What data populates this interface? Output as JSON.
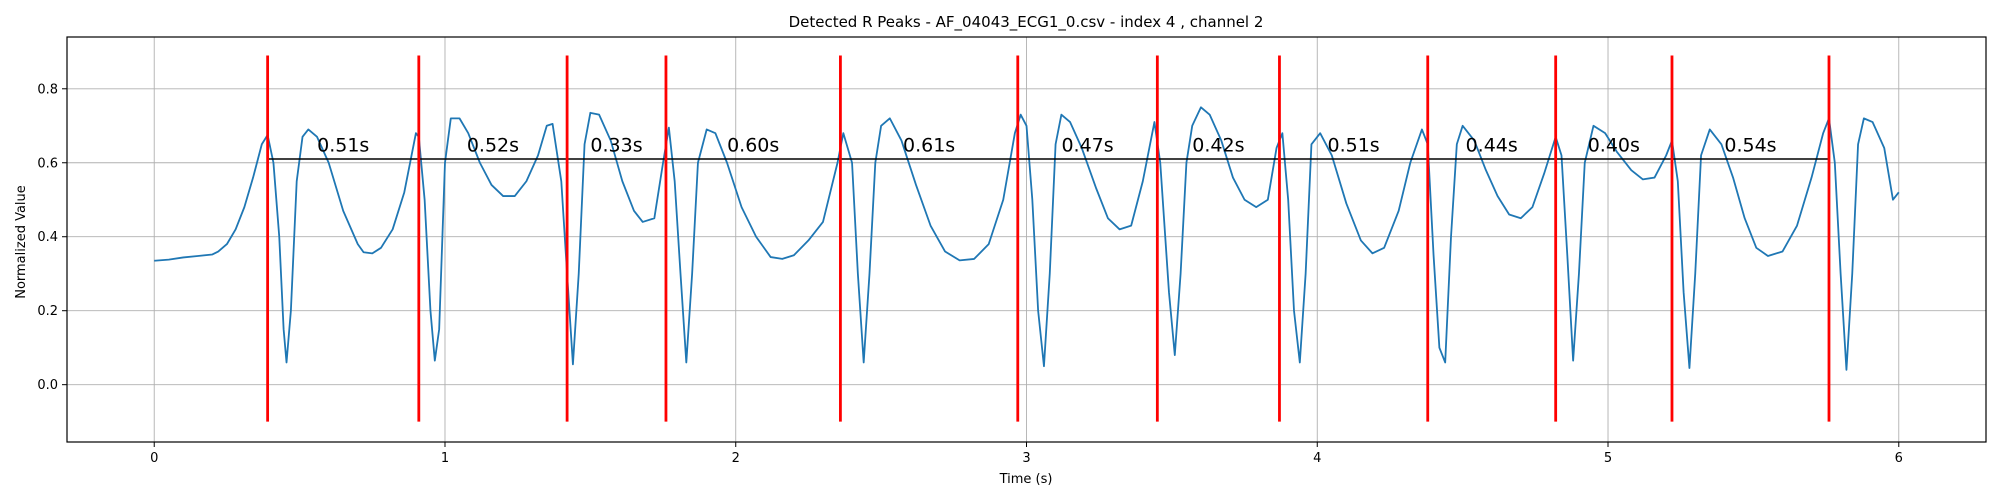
{
  "chart_data": {
    "type": "line",
    "title": "Detected R Peaks - AF_04043_ECG1_0.csv - index 4 , channel 2",
    "xlabel": "Time (s)",
    "ylabel": "Normalized Value",
    "xlim": [
      -0.3,
      6.3
    ],
    "ylim": [
      -0.155,
      0.94
    ],
    "xticks": [
      0,
      1,
      2,
      3,
      4,
      5,
      6
    ],
    "yticks": [
      0.0,
      0.2,
      0.4,
      0.6,
      0.8
    ],
    "grid": true,
    "series": [
      {
        "color": "#1f77b4",
        "points": [
          [
            0.0,
            0.335
          ],
          [
            0.05,
            0.338
          ],
          [
            0.1,
            0.344
          ],
          [
            0.15,
            0.348
          ],
          [
            0.2,
            0.352
          ],
          [
            0.22,
            0.36
          ],
          [
            0.25,
            0.38
          ],
          [
            0.28,
            0.42
          ],
          [
            0.31,
            0.48
          ],
          [
            0.34,
            0.56
          ],
          [
            0.37,
            0.65
          ],
          [
            0.39,
            0.675
          ],
          [
            0.41,
            0.6
          ],
          [
            0.43,
            0.4
          ],
          [
            0.445,
            0.15
          ],
          [
            0.455,
            0.06
          ],
          [
            0.47,
            0.2
          ],
          [
            0.49,
            0.55
          ],
          [
            0.51,
            0.67
          ],
          [
            0.53,
            0.69
          ],
          [
            0.56,
            0.67
          ],
          [
            0.6,
            0.6
          ],
          [
            0.65,
            0.47
          ],
          [
            0.7,
            0.38
          ],
          [
            0.72,
            0.358
          ],
          [
            0.75,
            0.355
          ],
          [
            0.78,
            0.37
          ],
          [
            0.82,
            0.42
          ],
          [
            0.86,
            0.52
          ],
          [
            0.9,
            0.68
          ],
          [
            0.91,
            0.67
          ],
          [
            0.93,
            0.5
          ],
          [
            0.95,
            0.2
          ],
          [
            0.965,
            0.065
          ],
          [
            0.98,
            0.15
          ],
          [
            1.0,
            0.6
          ],
          [
            1.02,
            0.72
          ],
          [
            1.05,
            0.72
          ],
          [
            1.08,
            0.68
          ],
          [
            1.12,
            0.6
          ],
          [
            1.16,
            0.54
          ],
          [
            1.2,
            0.51
          ],
          [
            1.24,
            0.51
          ],
          [
            1.28,
            0.55
          ],
          [
            1.32,
            0.62
          ],
          [
            1.35,
            0.7
          ],
          [
            1.37,
            0.705
          ],
          [
            1.4,
            0.55
          ],
          [
            1.42,
            0.3
          ],
          [
            1.44,
            0.055
          ],
          [
            1.46,
            0.3
          ],
          [
            1.48,
            0.65
          ],
          [
            1.5,
            0.735
          ],
          [
            1.53,
            0.73
          ],
          [
            1.57,
            0.66
          ],
          [
            1.61,
            0.55
          ],
          [
            1.65,
            0.47
          ],
          [
            1.68,
            0.44
          ],
          [
            1.72,
            0.45
          ],
          [
            1.75,
            0.6
          ],
          [
            1.77,
            0.695
          ],
          [
            1.79,
            0.55
          ],
          [
            1.81,
            0.3
          ],
          [
            1.83,
            0.06
          ],
          [
            1.85,
            0.3
          ],
          [
            1.87,
            0.6
          ],
          [
            1.9,
            0.69
          ],
          [
            1.93,
            0.68
          ],
          [
            1.97,
            0.6
          ],
          [
            2.02,
            0.48
          ],
          [
            2.07,
            0.4
          ],
          [
            2.12,
            0.345
          ],
          [
            2.16,
            0.34
          ],
          [
            2.2,
            0.35
          ],
          [
            2.25,
            0.39
          ],
          [
            2.3,
            0.44
          ],
          [
            2.35,
            0.6
          ],
          [
            2.37,
            0.68
          ],
          [
            2.4,
            0.6
          ],
          [
            2.42,
            0.3
          ],
          [
            2.44,
            0.06
          ],
          [
            2.46,
            0.3
          ],
          [
            2.48,
            0.6
          ],
          [
            2.5,
            0.7
          ],
          [
            2.53,
            0.72
          ],
          [
            2.57,
            0.66
          ],
          [
            2.62,
            0.54
          ],
          [
            2.67,
            0.43
          ],
          [
            2.72,
            0.36
          ],
          [
            2.77,
            0.336
          ],
          [
            2.82,
            0.34
          ],
          [
            2.87,
            0.38
          ],
          [
            2.92,
            0.5
          ],
          [
            2.96,
            0.68
          ],
          [
            2.98,
            0.73
          ],
          [
            3.0,
            0.7
          ],
          [
            3.02,
            0.5
          ],
          [
            3.04,
            0.2
          ],
          [
            3.06,
            0.05
          ],
          [
            3.08,
            0.3
          ],
          [
            3.1,
            0.65
          ],
          [
            3.12,
            0.73
          ],
          [
            3.15,
            0.71
          ],
          [
            3.19,
            0.64
          ],
          [
            3.24,
            0.53
          ],
          [
            3.28,
            0.45
          ],
          [
            3.32,
            0.42
          ],
          [
            3.36,
            0.43
          ],
          [
            3.4,
            0.55
          ],
          [
            3.44,
            0.71
          ],
          [
            3.46,
            0.6
          ],
          [
            3.49,
            0.25
          ],
          [
            3.51,
            0.08
          ],
          [
            3.53,
            0.3
          ],
          [
            3.55,
            0.6
          ],
          [
            3.57,
            0.7
          ],
          [
            3.6,
            0.75
          ],
          [
            3.63,
            0.73
          ],
          [
            3.67,
            0.66
          ],
          [
            3.71,
            0.56
          ],
          [
            3.75,
            0.5
          ],
          [
            3.79,
            0.48
          ],
          [
            3.83,
            0.5
          ],
          [
            3.86,
            0.64
          ],
          [
            3.88,
            0.68
          ],
          [
            3.9,
            0.5
          ],
          [
            3.92,
            0.2
          ],
          [
            3.94,
            0.06
          ],
          [
            3.96,
            0.3
          ],
          [
            3.98,
            0.65
          ],
          [
            4.01,
            0.68
          ],
          [
            4.05,
            0.62
          ],
          [
            4.1,
            0.49
          ],
          [
            4.15,
            0.39
          ],
          [
            4.19,
            0.355
          ],
          [
            4.23,
            0.37
          ],
          [
            4.28,
            0.47
          ],
          [
            4.32,
            0.6
          ],
          [
            4.36,
            0.69
          ],
          [
            4.38,
            0.65
          ],
          [
            4.4,
            0.35
          ],
          [
            4.42,
            0.1
          ],
          [
            4.44,
            0.06
          ],
          [
            4.46,
            0.4
          ],
          [
            4.48,
            0.65
          ],
          [
            4.5,
            0.7
          ],
          [
            4.54,
            0.66
          ],
          [
            4.58,
            0.58
          ],
          [
            4.62,
            0.51
          ],
          [
            4.66,
            0.46
          ],
          [
            4.7,
            0.45
          ],
          [
            4.74,
            0.48
          ],
          [
            4.78,
            0.57
          ],
          [
            4.82,
            0.67
          ],
          [
            4.84,
            0.62
          ],
          [
            4.86,
            0.35
          ],
          [
            4.88,
            0.065
          ],
          [
            4.9,
            0.3
          ],
          [
            4.92,
            0.6
          ],
          [
            4.95,
            0.7
          ],
          [
            4.99,
            0.68
          ],
          [
            5.03,
            0.63
          ],
          [
            5.08,
            0.58
          ],
          [
            5.12,
            0.555
          ],
          [
            5.16,
            0.56
          ],
          [
            5.2,
            0.62
          ],
          [
            5.22,
            0.66
          ],
          [
            5.24,
            0.55
          ],
          [
            5.26,
            0.25
          ],
          [
            5.28,
            0.045
          ],
          [
            5.3,
            0.3
          ],
          [
            5.32,
            0.62
          ],
          [
            5.35,
            0.69
          ],
          [
            5.39,
            0.65
          ],
          [
            5.43,
            0.56
          ],
          [
            5.47,
            0.45
          ],
          [
            5.51,
            0.37
          ],
          [
            5.55,
            0.348
          ],
          [
            5.6,
            0.36
          ],
          [
            5.65,
            0.43
          ],
          [
            5.7,
            0.56
          ],
          [
            5.74,
            0.68
          ],
          [
            5.76,
            0.72
          ],
          [
            5.78,
            0.6
          ],
          [
            5.8,
            0.3
          ],
          [
            5.82,
            0.04
          ],
          [
            5.84,
            0.3
          ],
          [
            5.86,
            0.65
          ],
          [
            5.88,
            0.72
          ],
          [
            5.91,
            0.71
          ],
          [
            5.95,
            0.64
          ],
          [
            5.98,
            0.5
          ],
          [
            6.0,
            0.52
          ]
        ]
      }
    ],
    "r_peaks": {
      "color": "#ff0000",
      "times": [
        0.39,
        0.91,
        1.42,
        1.76,
        2.36,
        2.97,
        3.45,
        3.87,
        4.38,
        4.82,
        5.22,
        5.76
      ],
      "y_range": [
        -0.1,
        0.89
      ]
    },
    "interval_line": {
      "y": 0.61,
      "tick_bottom": 0.57,
      "color": "#000000"
    },
    "interval_labels": [
      "0.51s",
      "0.52s",
      "0.33s",
      "0.60s",
      "0.61s",
      "0.47s",
      "0.42s",
      "0.51s",
      "0.44s",
      "0.40s",
      "0.54s"
    ],
    "interval_label_y": 0.63
  }
}
